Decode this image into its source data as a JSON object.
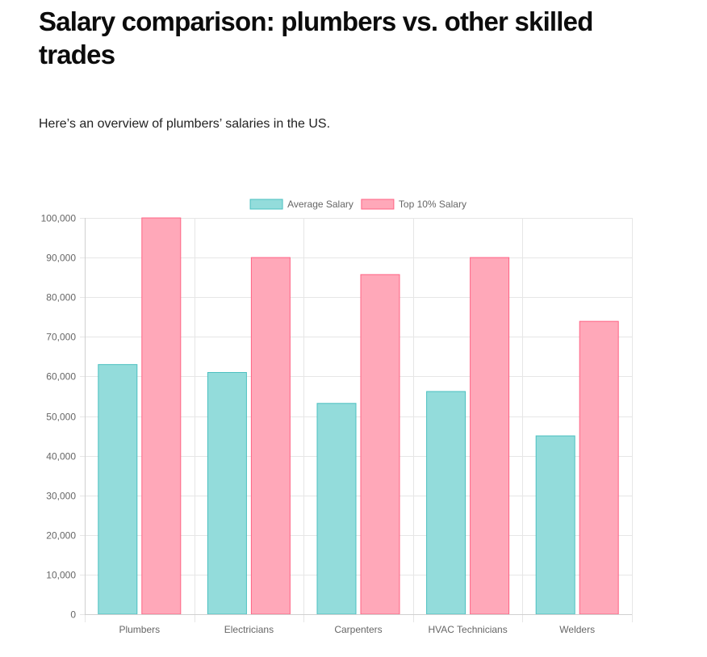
{
  "header": {
    "title": "Salary comparison: plumbers vs. other skilled trades",
    "intro": "Here’s an overview of plumbers’ salaries in the US."
  },
  "colors": {
    "average_fill": "#93dcdb",
    "average_border": "#4bc0c0",
    "top10_fill": "#ffa8b9",
    "top10_border": "#ff6384",
    "grid": "#e6e6e6",
    "tick_text": "#666666"
  },
  "chart_data": {
    "type": "bar",
    "title": "",
    "xlabel": "",
    "ylabel": "",
    "categories": [
      "Plumbers",
      "Electricians",
      "Carpenters",
      "HVAC Technicians",
      "Welders"
    ],
    "series": [
      {
        "name": "Average Salary",
        "values": [
          63000,
          61000,
          53200,
          56200,
          45000
        ]
      },
      {
        "name": "Top 10% Salary",
        "values": [
          100000,
          90000,
          85700,
          90000,
          73900
        ]
      }
    ],
    "ylim": [
      0,
      100000
    ],
    "yticks": [
      {
        "value": 0,
        "label": "0"
      },
      {
        "value": 10000,
        "label": "10,000"
      },
      {
        "value": 20000,
        "label": "20,000"
      },
      {
        "value": 30000,
        "label": "30,000"
      },
      {
        "value": 40000,
        "label": "40,000"
      },
      {
        "value": 50000,
        "label": "50,000"
      },
      {
        "value": 60000,
        "label": "60,000"
      },
      {
        "value": 70000,
        "label": "70,000"
      },
      {
        "value": 80000,
        "label": "80,000"
      },
      {
        "value": 90000,
        "label": "90,000"
      },
      {
        "value": 100000,
        "label": "100,000"
      }
    ],
    "grid": true,
    "legend_position": "top-center"
  }
}
